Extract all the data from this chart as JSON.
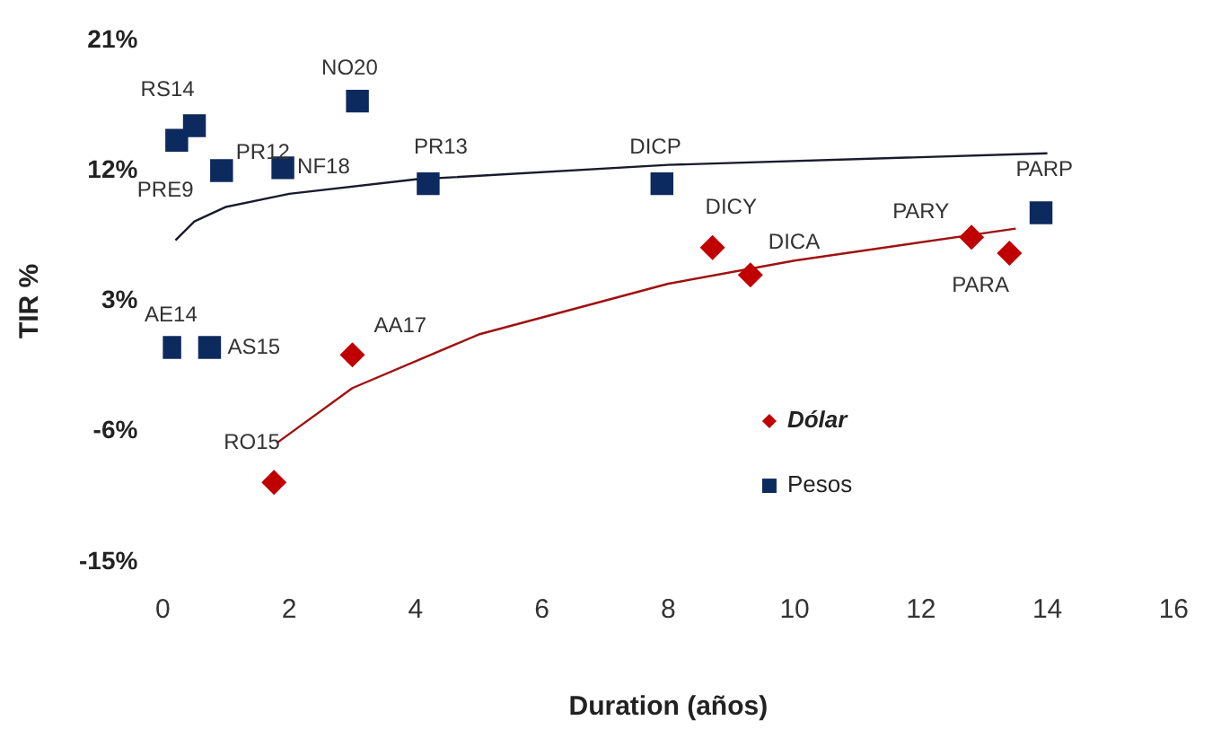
{
  "chart_data": {
    "type": "scatter",
    "xlabel": "Duration (años)",
    "ylabel": "TIR %",
    "xlim": [
      0,
      16
    ],
    "xticks": [
      0,
      2,
      4,
      6,
      8,
      10,
      12,
      14,
      16
    ],
    "ylim": [
      -15,
      21
    ],
    "yticks": [
      {
        "value": 21,
        "label": "21%"
      },
      {
        "value": 12,
        "label": "12%"
      },
      {
        "value": 3,
        "label": "3%"
      },
      {
        "value": -6,
        "label": "-6%"
      },
      {
        "value": -15,
        "label": "-15%"
      }
    ],
    "grid": false,
    "legend": "bottom",
    "series": [
      {
        "name": "Dólar",
        "color": "#c00000",
        "marker": "diamond",
        "x": [
          1.76,
          3.0,
          8.7,
          9.3,
          12.8,
          13.4
        ],
        "values": [
          -9.5,
          -0.7,
          6.7,
          4.8,
          7.4,
          6.3
        ]
      },
      {
        "name": "Pesos",
        "color": "#0d2a5e",
        "marker": "square",
        "x": [
          0.22,
          0.5,
          0.93,
          1.9,
          3.08,
          4.2,
          7.9,
          13.9,
          0.11,
          0.74
        ],
        "values": [
          14.1,
          15.1,
          12.0,
          12.2,
          16.8,
          11.1,
          11.1,
          9.1,
          -0.2,
          -0.2
        ]
      },
      {
        "type": "line",
        "color": "#a01010",
        "marker": "none",
        "x": [
          1.8,
          3,
          5,
          8,
          10,
          13.5
        ],
        "values": [
          -6.8,
          -3.0,
          0.7,
          4.2,
          5.8,
          8.0
        ]
      },
      {
        "type": "line",
        "color": "#1a1a2e",
        "marker": "none",
        "x": [
          0.2,
          0.5,
          1,
          2,
          4,
          8,
          14
        ],
        "values": [
          7.2,
          8.5,
          9.5,
          10.4,
          11.4,
          12.4,
          13.2
        ]
      }
    ],
    "annotations": [
      {
        "text": "RO15",
        "x": 1.76,
        "y": -9.5
      },
      {
        "text": "AA17",
        "x": 3.0,
        "y": -0.7
      },
      {
        "text": "DICY",
        "x": 8.7,
        "y": 6.7
      },
      {
        "text": "DICA",
        "x": 9.3,
        "y": 4.8
      },
      {
        "text": "PARY",
        "x": 12.8,
        "y": 7.4
      },
      {
        "text": "PARA",
        "x": 13.4,
        "y": 6.3
      },
      {
        "text": "PRE9",
        "x": 0.22,
        "y": 14.1
      },
      {
        "text": "RS14",
        "x": 0.5,
        "y": 15.1
      },
      {
        "text": "PR12",
        "x": 0.93,
        "y": 12.0
      },
      {
        "text": "NF18",
        "x": 1.9,
        "y": 12.2
      },
      {
        "text": "NO20",
        "x": 3.08,
        "y": 16.8
      },
      {
        "text": "PR13",
        "x": 4.2,
        "y": 11.1
      },
      {
        "text": "DICP",
        "x": 7.9,
        "y": 11.1
      },
      {
        "text": "PARP",
        "x": 13.9,
        "y": 9.1
      },
      {
        "text": "AE14",
        "x": 0.11,
        "y": -0.2
      },
      {
        "text": "AS15",
        "x": 0.74,
        "y": -0.2
      }
    ]
  }
}
